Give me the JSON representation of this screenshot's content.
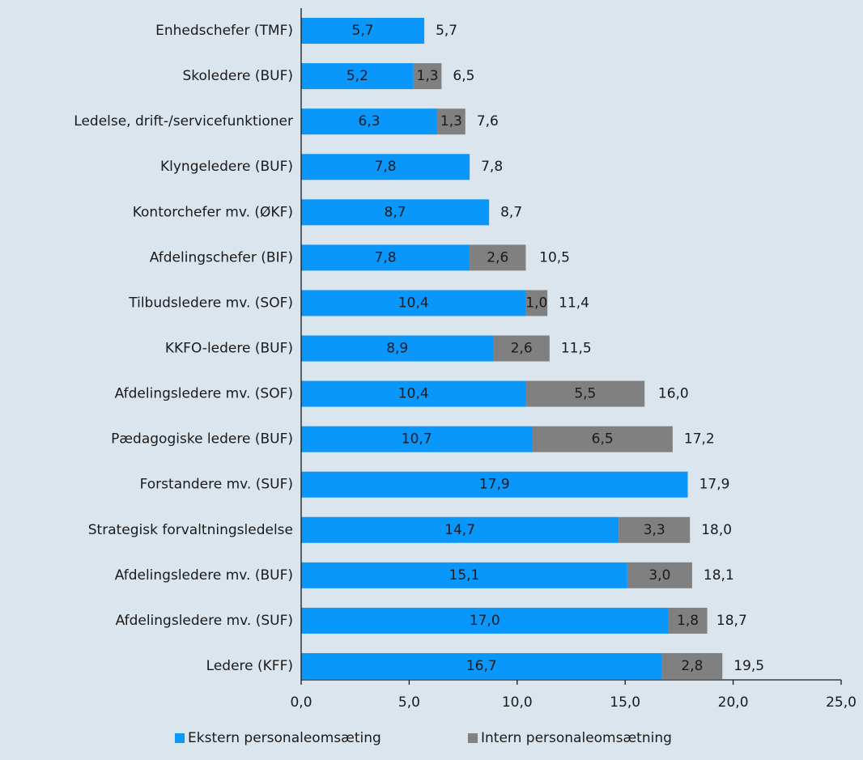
{
  "chart_data": {
    "type": "stacked-barh",
    "categories": [
      "Enhedschefer (TMF)",
      "Skoledere (BUF)",
      "Ledelse, drift-/servicefunktioner",
      "Klyngeledere (BUF)",
      "Kontorchefer mv. (ØKF)",
      "Afdelingschefer (BIF)",
      "Tilbudsledere mv. (SOF)",
      "KKFO-ledere (BUF)",
      "Afdelingsledere mv. (SOF)",
      "Pædagogiske ledere (BUF)",
      "Forstandere mv. (SUF)",
      "Strategisk forvaltningsledelse",
      "Afdelingsledere mv. (BUF)",
      "Afdelingsledere mv. (SUF)",
      "Ledere (KFF)"
    ],
    "series": [
      {
        "name": "Ekstern personaleomsæting",
        "color": "#0a97fb",
        "values": [
          5.7,
          5.2,
          6.3,
          7.8,
          8.7,
          7.8,
          10.4,
          8.9,
          10.4,
          10.7,
          17.9,
          14.7,
          15.1,
          17.0,
          16.7
        ],
        "value_labels": [
          "5,7",
          "5,2",
          "6,3",
          "7,8",
          "8,7",
          "7,8",
          "10,4",
          "8,9",
          "10,4",
          "10,7",
          "17,9",
          "14,7",
          "15,1",
          "17,0",
          "16,7"
        ]
      },
      {
        "name": "Intern personaleomsætning",
        "color": "#808080",
        "values": [
          null,
          1.3,
          1.3,
          null,
          null,
          2.6,
          1.0,
          2.6,
          5.5,
          6.5,
          null,
          3.3,
          3.0,
          1.8,
          2.8
        ],
        "value_labels": [
          null,
          "1,3",
          "1,3",
          null,
          null,
          "2,6",
          "1,0",
          "2,6",
          "5,5",
          "6,5",
          null,
          "3,3",
          "3,0",
          "1,8",
          "2,8"
        ]
      }
    ],
    "totals": [
      5.7,
      6.5,
      7.6,
      7.8,
      8.7,
      10.5,
      11.4,
      11.5,
      16.0,
      17.2,
      17.9,
      18.0,
      18.1,
      18.7,
      19.5
    ],
    "total_labels": [
      "5,7",
      "6,5",
      "7,6",
      "7,8",
      "8,7",
      "10,5",
      "11,4",
      "11,5",
      "16,0",
      "17,2",
      "17,9",
      "18,0",
      "18,1",
      "18,7",
      "19,5"
    ],
    "xlim": [
      0,
      25
    ],
    "xticks": [
      {
        "value": 0,
        "label": "0,0"
      },
      {
        "value": 5,
        "label": "5,0"
      },
      {
        "value": 10,
        "label": "10,0"
      },
      {
        "value": 15,
        "label": "15,0"
      },
      {
        "value": 20,
        "label": "20,0"
      },
      {
        "value": 25,
        "label": "25,0"
      }
    ],
    "legend": "bottom"
  }
}
